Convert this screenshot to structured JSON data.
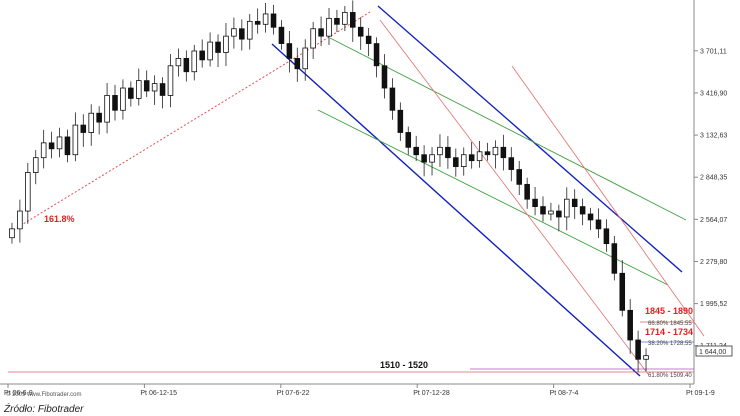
{
  "chart_data": {
    "type": "candlestick",
    "y_ticks": [
      "3 701,11",
      "3 416,90",
      "3 132,63",
      "2 848,35",
      "2 564,07",
      "2 279,80",
      "1 995,52",
      "1 711,24"
    ],
    "y_tick_values": [
      3701.11,
      3416.9,
      3132.63,
      2848.35,
      2564.07,
      2279.8,
      1995.52,
      1711.24
    ],
    "x_ticks": [
      "Pt 06-6-9",
      "Pt 06-12-15",
      "Pt 07-6-22",
      "Pt 07-12-28",
      "Pt 08-7-4",
      "Pt 09-1-9"
    ],
    "last_value_label": "1 644,00",
    "ylim": [
      1480,
      3990
    ],
    "closes": [
      2500,
      2620,
      2880,
      2980,
      3080,
      3040,
      3120,
      3000,
      3200,
      3150,
      3280,
      3220,
      3400,
      3300,
      3450,
      3380,
      3500,
      3430,
      3480,
      3400,
      3600,
      3650,
      3560,
      3700,
      3640,
      3760,
      3690,
      3800,
      3850,
      3780,
      3900,
      3880,
      3950,
      3860,
      3750,
      3650,
      3580,
      3720,
      3850,
      3800,
      3920,
      3880,
      3960,
      3860,
      3800,
      3750,
      3600,
      3450,
      3300,
      3150,
      3050,
      3000,
      2950,
      3000,
      3050,
      2980,
      2920,
      3000,
      2960,
      3020,
      3000,
      3050,
      2980,
      2900,
      2800,
      2700,
      2650,
      2600,
      2620,
      2580,
      2700,
      2650,
      2600,
      2560,
      2500,
      2400,
      2200,
      1950,
      1750,
      1620,
      1644
    ],
    "annotations": {
      "fib_label": "161.8%",
      "support_label": "1510 - 1520",
      "box1_label": "1845 - 1890",
      "box2_label": "1714 - 1734",
      "fib_small_1": "66.80% 1845.55",
      "fib_small_2": "38.20% 1728.55",
      "fib_small_3": "61.80% 1509.40"
    }
  },
  "footer": {
    "source": "Źródło: Fibotrader",
    "copyright": "© 2009 www.Fibotrader.com"
  }
}
